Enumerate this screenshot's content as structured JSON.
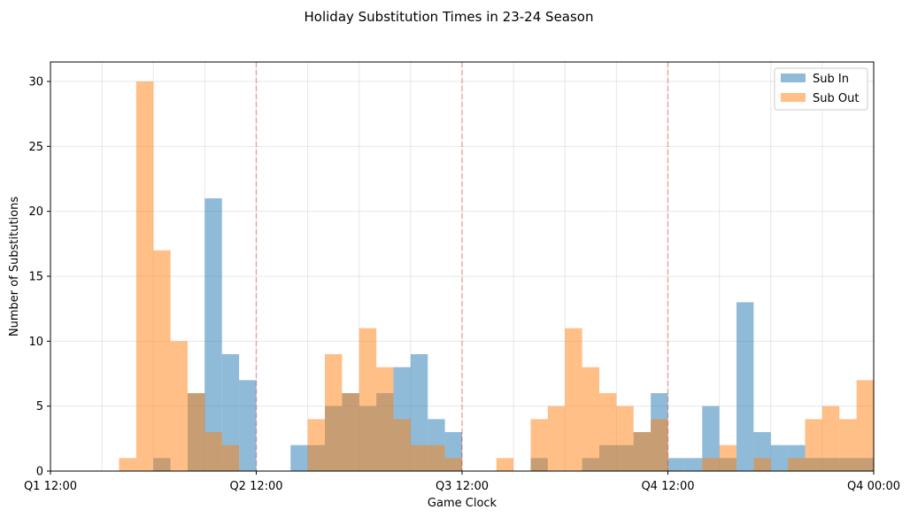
{
  "chart_data": {
    "type": "bar",
    "title": "Holiday Substitution Times in 23-24 Season",
    "xlabel": "Game Clock",
    "ylabel": "Number of Substitutions",
    "x_range": [
      0,
      48
    ],
    "ylim": [
      0,
      31.5
    ],
    "bin_width_minutes": 1,
    "xticks": [
      {
        "value": 0,
        "label": "Q1 12:00"
      },
      {
        "value": 12,
        "label": "Q2 12:00"
      },
      {
        "value": 24,
        "label": "Q3 12:00"
      },
      {
        "value": 36,
        "label": "Q4 12:00"
      },
      {
        "value": 48,
        "label": "Q4 00:00"
      }
    ],
    "yticks": [
      0,
      5,
      10,
      15,
      20,
      25,
      30
    ],
    "quarter_lines": [
      12,
      24,
      36
    ],
    "grid": true,
    "legend_position": "top-right",
    "series": [
      {
        "name": "Sub In",
        "color": "#1f77b4",
        "values": [
          0,
          0,
          0,
          0,
          0,
          0,
          1,
          0,
          6,
          21,
          9,
          7,
          0,
          0,
          2,
          2,
          5,
          6,
          5,
          6,
          8,
          9,
          4,
          3,
          0,
          0,
          0,
          0,
          1,
          0,
          0,
          1,
          2,
          2,
          3,
          6,
          1,
          1,
          5,
          1,
          13,
          3,
          2,
          2,
          1,
          1,
          1,
          1
        ]
      },
      {
        "name": "Sub Out",
        "color": "#ff7f0e",
        "values": [
          0,
          0,
          0,
          0,
          1,
          30,
          17,
          10,
          6,
          3,
          2,
          0,
          0,
          0,
          0,
          4,
          9,
          6,
          11,
          8,
          4,
          2,
          2,
          1,
          0,
          0,
          1,
          0,
          4,
          5,
          11,
          8,
          6,
          5,
          3,
          4,
          0,
          0,
          1,
          2,
          0,
          1,
          0,
          1,
          4,
          5,
          4,
          7
        ]
      }
    ]
  }
}
